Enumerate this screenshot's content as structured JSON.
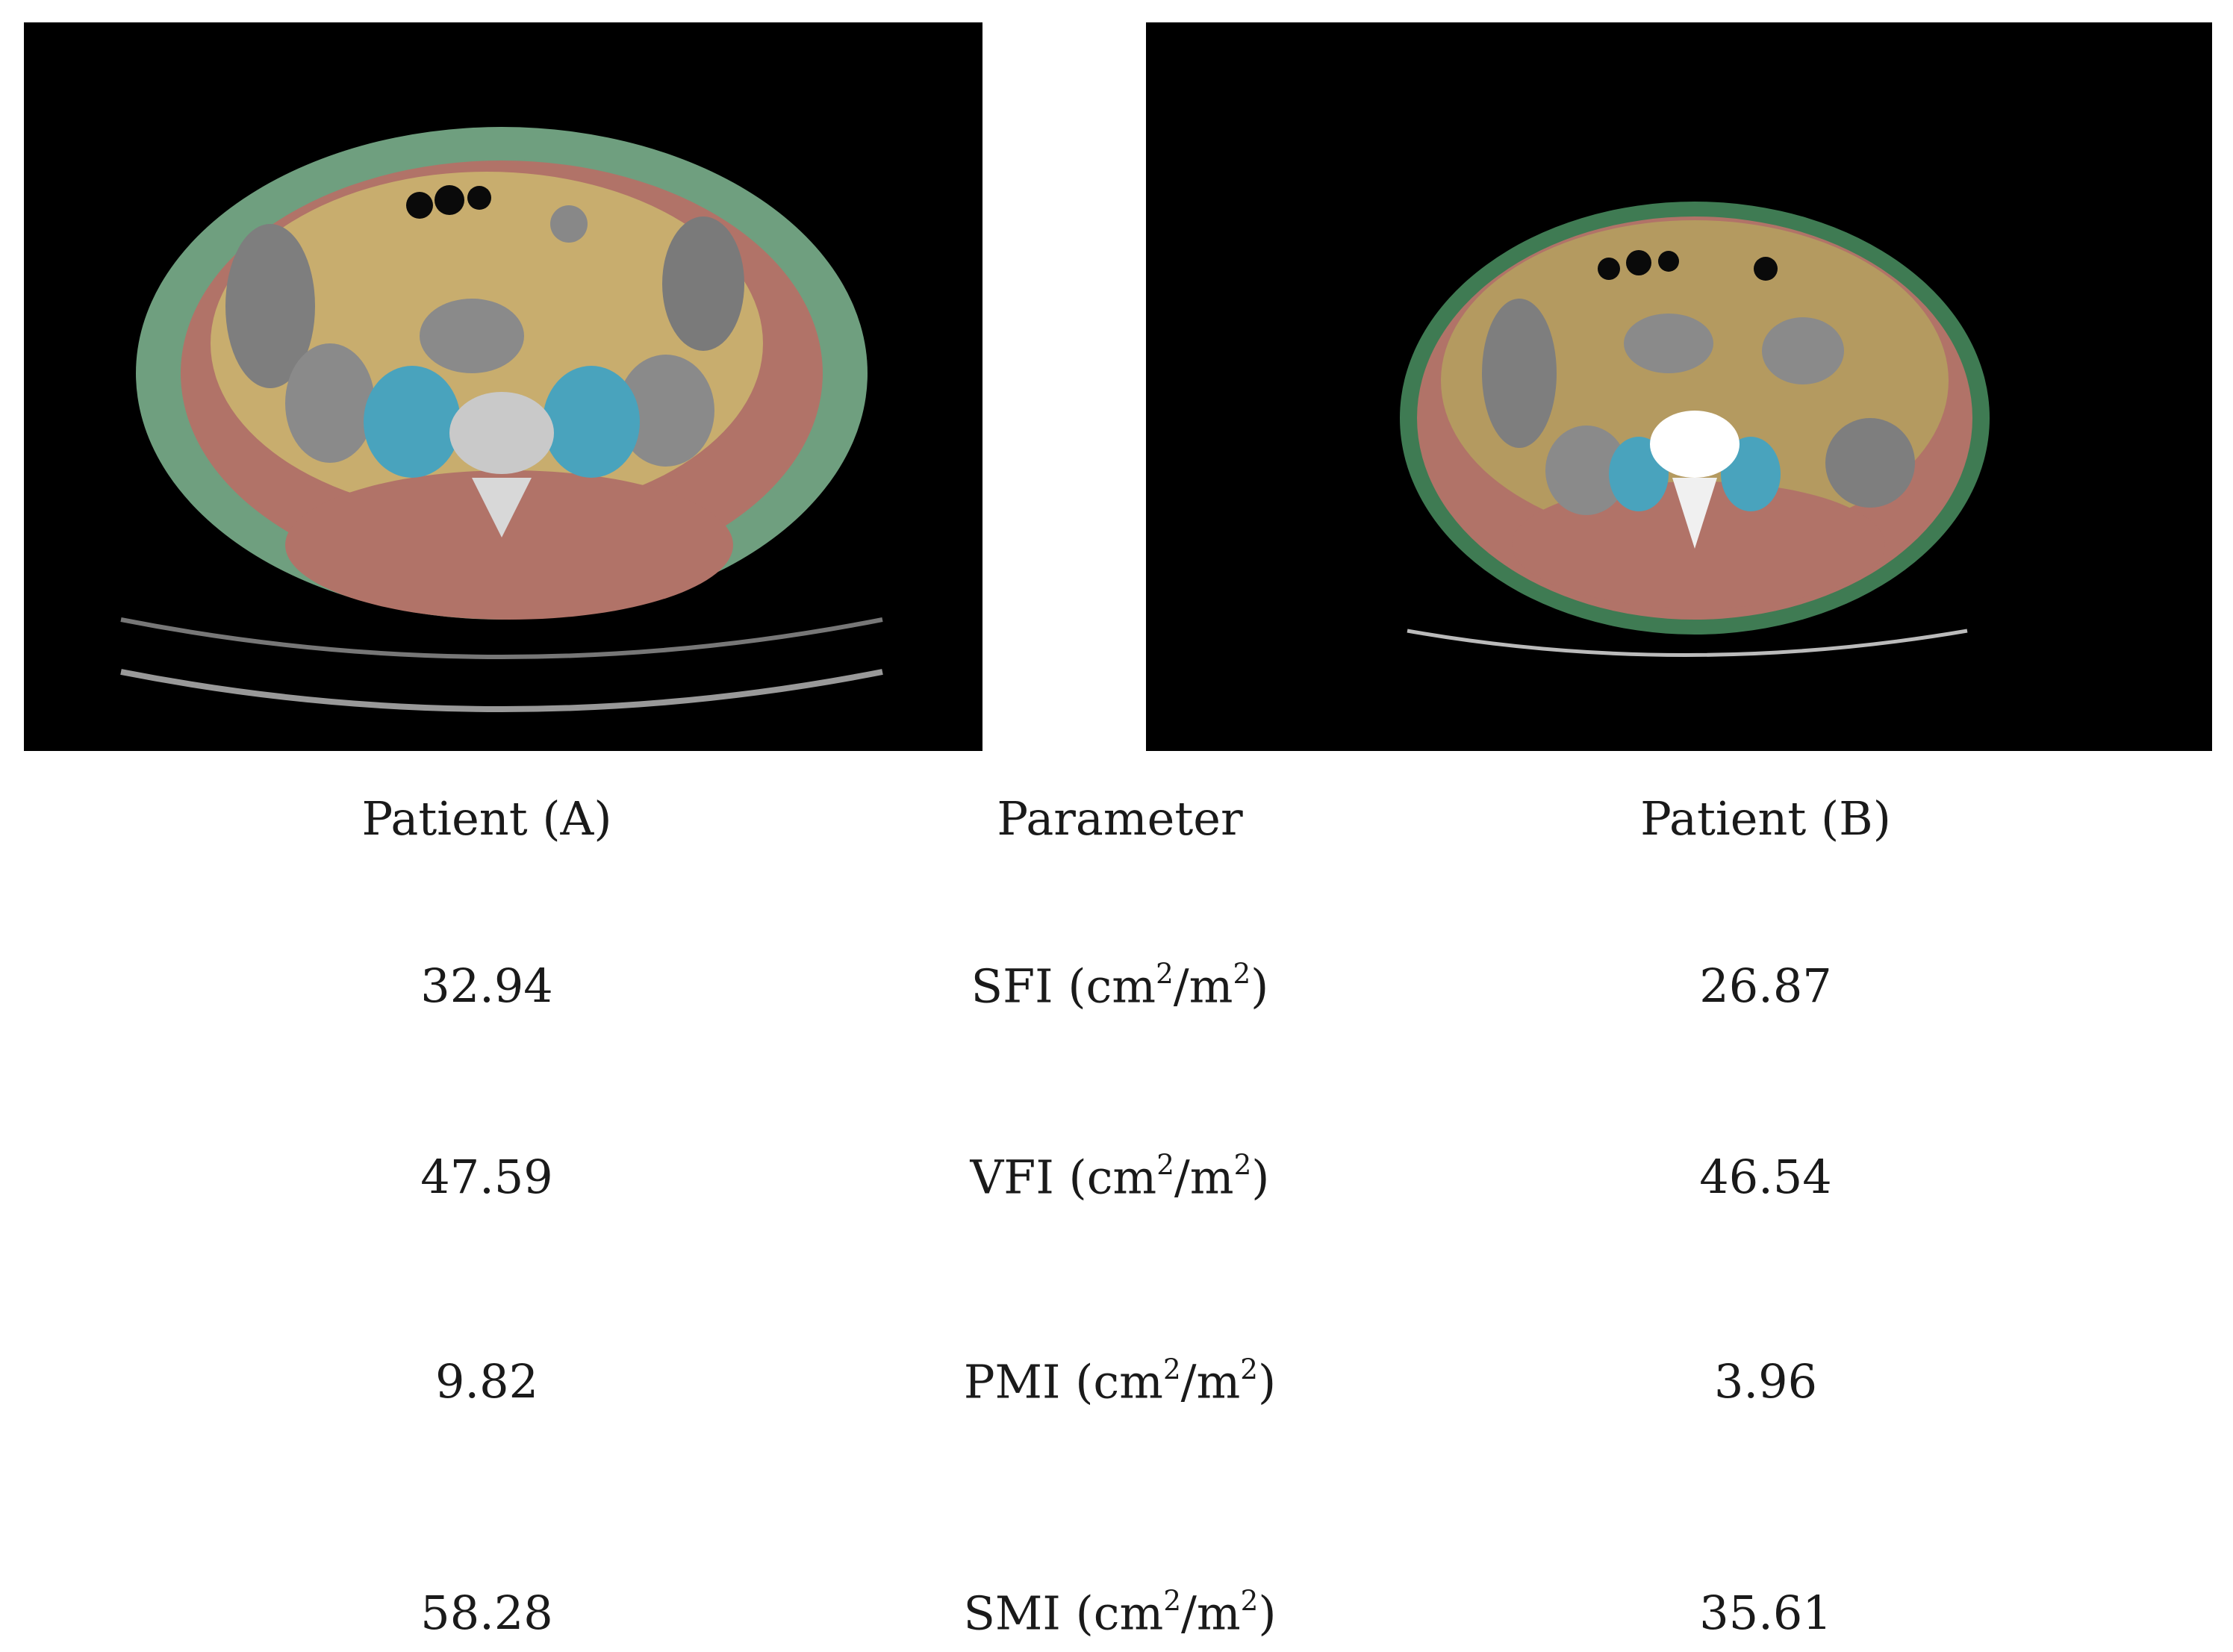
{
  "images": [
    {
      "name": "CT slice patient A",
      "segments": [
        "subcutaneous-fat",
        "skeletal-muscle",
        "visceral-fat",
        "psoas-muscle"
      ]
    },
    {
      "name": "CT slice patient B",
      "segments": [
        "subcutaneous-fat",
        "skeletal-muscle",
        "visceral-fat",
        "psoas-muscle"
      ]
    }
  ],
  "colors": {
    "subcutaneous_fat": "#6f9f7f",
    "skeletal_muscle": "#b17368",
    "visceral_fat": "#c8ad6e",
    "psoas_muscle": "#49a3bd"
  },
  "table": {
    "headers": {
      "patient_a": "Patient (A)",
      "parameter": "Parameter",
      "patient_b": "Patient (B)"
    },
    "unit_prefix": " (cm",
    "unit_middle": "/m",
    "unit_suffix": ")",
    "unit_power": "2",
    "rows": [
      {
        "parameter": "SFI",
        "a": "32.94",
        "b": "26.87"
      },
      {
        "parameter": "VFI",
        "a": "47.59",
        "b": "46.54"
      },
      {
        "parameter": "PMI",
        "a": "9.82",
        "b": "3.96"
      },
      {
        "parameter": "SMI",
        "a": "58.28",
        "b": "35.61"
      }
    ]
  }
}
